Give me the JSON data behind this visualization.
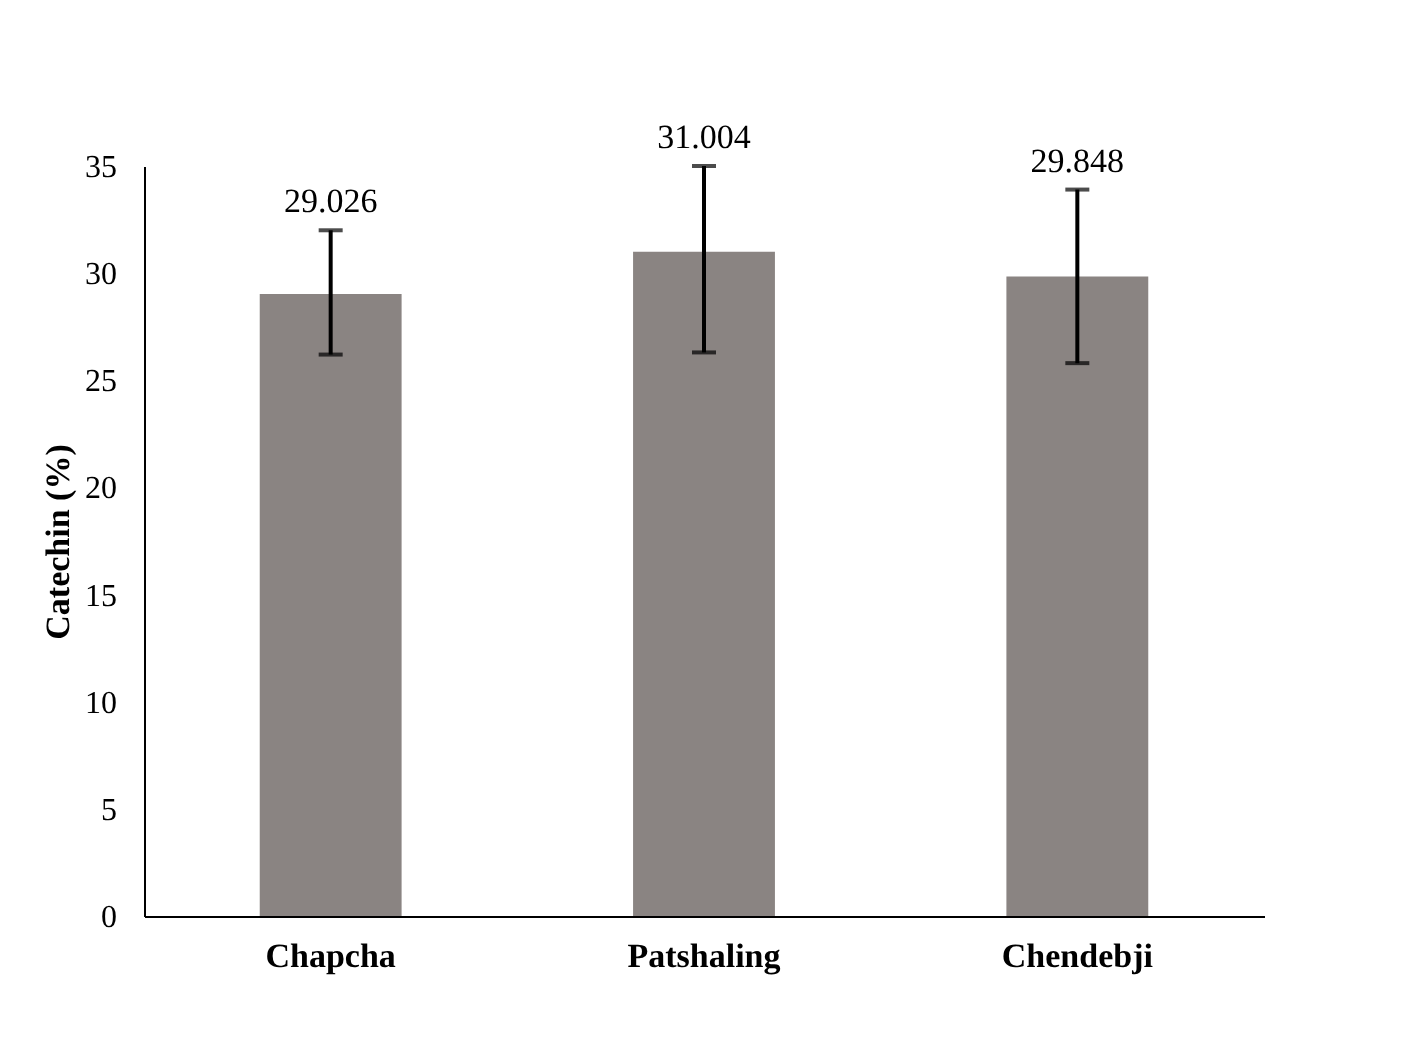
{
  "chart_data": {
    "type": "bar",
    "ylabel": "Catechin (%)",
    "categories": [
      "Chapcha",
      "Patshaling",
      "Chendebji"
    ],
    "values": [
      29.026,
      31.004,
      29.848
    ],
    "color": "#8a8482",
    "errors": [
      [
        26.2,
        32.0
      ],
      [
        26.3,
        35.0
      ],
      [
        25.8,
        33.9
      ]
    ],
    "data_labels": true,
    "ylim": [
      0,
      35
    ],
    "yticks": [
      0,
      5,
      10,
      15,
      20,
      25,
      30,
      35
    ],
    "grid": false
  }
}
